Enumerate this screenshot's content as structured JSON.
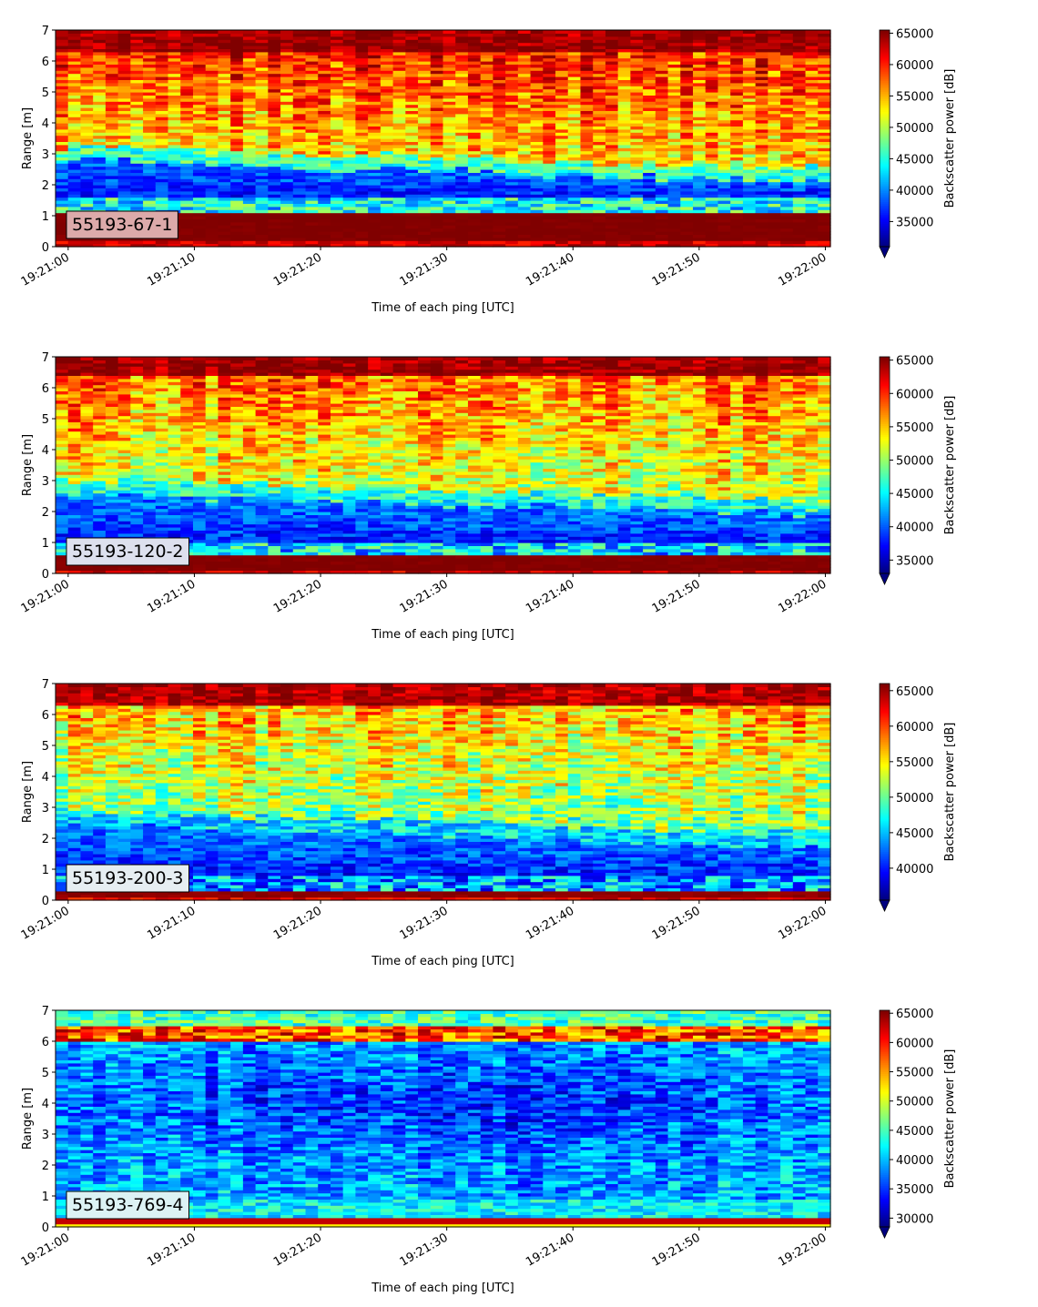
{
  "colormap": "jet",
  "chart_data": [
    {
      "type": "heatmap",
      "annotation": "55193-67-1",
      "annotation_bg": "#dcaaaa",
      "xlabel": "Time of each ping [UTC]",
      "ylabel": "Range [m]",
      "x_ticks": [
        "19:21:00",
        "19:21:10",
        "19:21:20",
        "19:21:30",
        "19:21:40",
        "19:21:50",
        "19:22:00"
      ],
      "x_range": [
        "19:20:59",
        "19:22:00.4"
      ],
      "y_ticks": [
        "0",
        "1",
        "2",
        "3",
        "4",
        "5",
        "6",
        "7"
      ],
      "y_range": [
        0,
        7
      ],
      "colorbar": {
        "label": "Backscatter power [dB]",
        "min": 31000,
        "max": 65500,
        "extend": "min",
        "ticks": [
          "35000",
          "40000",
          "45000",
          "50000",
          "55000",
          "60000",
          "65000"
        ]
      },
      "profile": {
        "bottom_band": [
          0.2,
          1.15,
          65000
        ],
        "low_min": 36000,
        "low_band_to": 1.6,
        "surface_top_start": 2.8,
        "surface_top_end": 2.1,
        "mid_value": 57000,
        "top_band_from": 6.3
      }
    },
    {
      "type": "heatmap",
      "annotation": "55193-120-2",
      "annotation_bg": "#dde0ee",
      "xlabel": "Time of each ping [UTC]",
      "ylabel": "Range [m]",
      "x_ticks": [
        "19:21:00",
        "19:21:10",
        "19:21:20",
        "19:21:30",
        "19:21:40",
        "19:21:50",
        "19:22:00"
      ],
      "x_range": [
        "19:20:59",
        "19:22:00.4"
      ],
      "y_ticks": [
        "0",
        "1",
        "2",
        "3",
        "4",
        "5",
        "6",
        "7"
      ],
      "y_range": [
        0,
        7
      ],
      "colorbar": {
        "label": "Backscatter power [dB]",
        "min": 33000,
        "max": 65500,
        "extend": "min",
        "ticks": [
          "35000",
          "40000",
          "45000",
          "50000",
          "55000",
          "60000",
          "65000"
        ]
      },
      "profile": {
        "bottom_band": [
          0.1,
          0.6,
          65000
        ],
        "low_min": 38000,
        "low_band_to": 1.0,
        "surface_top_start": 2.6,
        "surface_top_end": 1.9,
        "mid_value": 55000,
        "top_band_from": 6.4
      }
    },
    {
      "type": "heatmap",
      "annotation": "55193-200-3",
      "annotation_bg": "#e6eef2",
      "xlabel": "Time of each ping [UTC]",
      "ylabel": "Range [m]",
      "x_ticks": [
        "19:21:00",
        "19:21:10",
        "19:21:20",
        "19:21:30",
        "19:21:40",
        "19:21:50",
        "19:22:00"
      ],
      "x_range": [
        "19:20:59",
        "19:22:00.4"
      ],
      "y_ticks": [
        "0",
        "1",
        "2",
        "3",
        "4",
        "5",
        "6",
        "7"
      ],
      "y_range": [
        0,
        7
      ],
      "colorbar": {
        "label": "Backscatter power [dB]",
        "min": 35500,
        "max": 66000,
        "extend": "min",
        "ticks": [
          "40000",
          "45000",
          "50000",
          "55000",
          "60000",
          "65000"
        ]
      },
      "profile": {
        "bottom_band": [
          0.15,
          0.35,
          65000
        ],
        "low_min": 40000,
        "low_band_to": 0.8,
        "surface_top_start": 2.5,
        "surface_top_end": 1.7,
        "mid_value": 54000,
        "top_band_from": 6.3
      }
    },
    {
      "type": "heatmap",
      "annotation": "55193-769-4",
      "annotation_bg": "#dcf2f4",
      "xlabel": "Time of each ping [UTC]",
      "ylabel": "Range [m]",
      "x_ticks": [
        "19:21:00",
        "19:21:10",
        "19:21:20",
        "19:21:30",
        "19:21:40",
        "19:21:50",
        "19:22:00"
      ],
      "x_range": [
        "19:20:59",
        "19:22:00.4"
      ],
      "y_ticks": [
        "0",
        "1",
        "2",
        "3",
        "4",
        "5",
        "6",
        "7"
      ],
      "y_range": [
        0,
        7
      ],
      "colorbar": {
        "label": "Backscatter power [dB]",
        "min": 28500,
        "max": 65500,
        "extend": "min",
        "ticks": [
          "30000",
          "35000",
          "40000",
          "45000",
          "50000",
          "55000",
          "60000",
          "65000"
        ]
      },
      "profile": {
        "bottom_band": [
          0.15,
          0.3,
          63000
        ],
        "low_min": 42000,
        "low_band_to": 0.9,
        "surface_top_start": 6.1,
        "surface_top_end": 6.2,
        "mid_value": 39000,
        "top_band_from": 6.15
      }
    }
  ]
}
